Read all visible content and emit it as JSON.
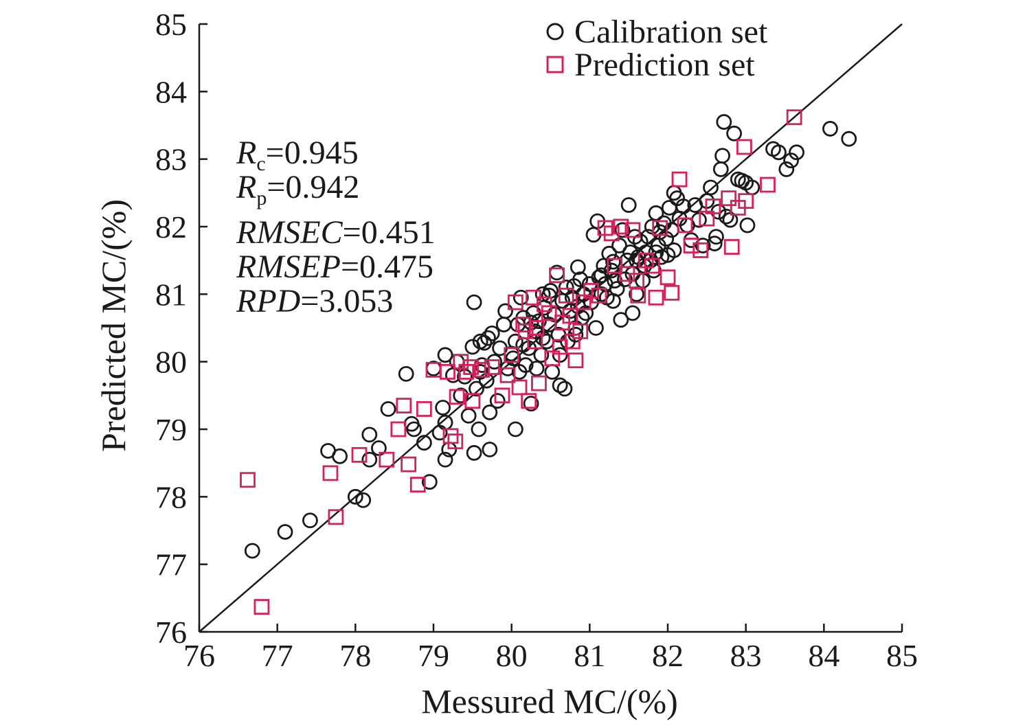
{
  "chart_data": {
    "type": "scatter",
    "xlabel": "Messured MC/(%)",
    "ylabel": "Predicted MC/(%)",
    "xlim": [
      76,
      85
    ],
    "ylim": [
      76,
      85
    ],
    "xticks": [
      "76",
      "77",
      "78",
      "79",
      "80",
      "81",
      "82",
      "83",
      "84",
      "85"
    ],
    "yticks": [
      "76",
      "77",
      "78",
      "79",
      "80",
      "81",
      "82",
      "83",
      "84",
      "85"
    ],
    "grid": false,
    "legend_position": "top-right",
    "reference_line": {
      "from": [
        76,
        76
      ],
      "to": [
        85,
        85
      ]
    },
    "stats": {
      "rc": {
        "sym": "R",
        "sub": "c",
        "val": "=0.945"
      },
      "rp": {
        "sym": "R",
        "sub": "p",
        "val": "=0.942"
      },
      "rmsec": {
        "sym": "RMSEC",
        "val": "=0.451"
      },
      "rmsep": {
        "sym": "RMSEP",
        "val": "=0.475"
      },
      "rpd": {
        "sym": "RPD",
        "val": "=3.053"
      }
    },
    "series": [
      {
        "name": "Calibration set",
        "marker": "circle",
        "color": "#1a1a1a",
        "points": [
          [
            76.68,
            77.2
          ],
          [
            77.1,
            77.48
          ],
          [
            77.42,
            77.65
          ],
          [
            78.0,
            78.0
          ],
          [
            78.1,
            77.95
          ],
          [
            77.65,
            78.68
          ],
          [
            77.8,
            78.6
          ],
          [
            78.18,
            78.55
          ],
          [
            78.18,
            78.92
          ],
          [
            78.3,
            78.72
          ],
          [
            78.42,
            79.3
          ],
          [
            78.65,
            79.82
          ],
          [
            78.72,
            79.08
          ],
          [
            78.75,
            79.0
          ],
          [
            78.88,
            78.8
          ],
          [
            78.95,
            78.22
          ],
          [
            79.0,
            79.9
          ],
          [
            79.08,
            78.95
          ],
          [
            79.12,
            79.32
          ],
          [
            79.15,
            79.1
          ],
          [
            79.15,
            78.55
          ],
          [
            79.15,
            80.1
          ],
          [
            79.2,
            78.7
          ],
          [
            79.25,
            79.8
          ],
          [
            79.3,
            80.0
          ],
          [
            79.4,
            79.78
          ],
          [
            79.45,
            79.2
          ],
          [
            79.5,
            80.22
          ],
          [
            79.52,
            80.88
          ],
          [
            79.52,
            78.65
          ],
          [
            79.55,
            79.6
          ],
          [
            79.58,
            79.0
          ],
          [
            79.6,
            80.3
          ],
          [
            79.62,
            79.95
          ],
          [
            79.65,
            80.28
          ],
          [
            79.7,
            80.35
          ],
          [
            79.72,
            79.25
          ],
          [
            79.75,
            80.42
          ],
          [
            79.72,
            78.7
          ],
          [
            79.78,
            80.0
          ],
          [
            79.82,
            79.42
          ],
          [
            79.85,
            80.2
          ],
          [
            79.9,
            80.55
          ],
          [
            79.92,
            80.75
          ],
          [
            79.95,
            79.9
          ],
          [
            80.0,
            80.12
          ],
          [
            80.02,
            80.05
          ],
          [
            80.05,
            80.3
          ],
          [
            80.08,
            80.55
          ],
          [
            80.05,
            79.0
          ],
          [
            80.1,
            79.85
          ],
          [
            80.12,
            80.95
          ],
          [
            80.15,
            80.65
          ],
          [
            80.18,
            79.95
          ],
          [
            80.22,
            80.2
          ],
          [
            80.25,
            79.38
          ],
          [
            80.28,
            80.72
          ],
          [
            80.3,
            80.45
          ],
          [
            80.32,
            79.9
          ],
          [
            80.35,
            80.6
          ],
          [
            80.38,
            80.1
          ],
          [
            80.4,
            81.0
          ],
          [
            80.42,
            80.8
          ],
          [
            80.45,
            80.3
          ],
          [
            80.48,
            80.55
          ],
          [
            80.5,
            81.05
          ],
          [
            80.52,
            79.85
          ],
          [
            80.55,
            80.7
          ],
          [
            80.58,
            81.32
          ],
          [
            80.6,
            80.4
          ],
          [
            80.62,
            79.65
          ],
          [
            80.65,
            80.9
          ],
          [
            80.68,
            79.6
          ],
          [
            80.7,
            81.1
          ],
          [
            80.72,
            80.3
          ],
          [
            80.75,
            80.75
          ],
          [
            80.78,
            80.95
          ],
          [
            80.8,
            81.12
          ],
          [
            80.82,
            80.5
          ],
          [
            80.85,
            80.82
          ],
          [
            80.88,
            81.22
          ],
          [
            80.9,
            80.65
          ],
          [
            80.92,
            81.0
          ],
          [
            80.95,
            80.72
          ],
          [
            81.0,
            81.15
          ],
          [
            81.02,
            80.88
          ],
          [
            81.05,
            81.88
          ],
          [
            81.08,
            80.5
          ],
          [
            81.1,
            82.08
          ],
          [
            81.12,
            81.25
          ],
          [
            81.15,
            81.0
          ],
          [
            81.18,
            81.42
          ],
          [
            81.2,
            81.15
          ],
          [
            81.22,
            80.95
          ],
          [
            81.25,
            81.6
          ],
          [
            81.28,
            81.35
          ],
          [
            81.3,
            81.48
          ],
          [
            81.32,
            81.2
          ],
          [
            81.35,
            81.08
          ],
          [
            81.38,
            81.72
          ],
          [
            81.4,
            80.62
          ],
          [
            81.42,
            81.95
          ],
          [
            81.45,
            81.22
          ],
          [
            81.48,
            81.5
          ],
          [
            81.5,
            82.32
          ],
          [
            81.52,
            81.62
          ],
          [
            81.55,
            81.3
          ],
          [
            81.58,
            81.85
          ],
          [
            81.6,
            81.0
          ],
          [
            81.62,
            81.55
          ],
          [
            81.65,
            81.78
          ],
          [
            81.68,
            81.2
          ],
          [
            81.7,
            81.42
          ],
          [
            81.72,
            81.62
          ],
          [
            81.75,
            81.85
          ],
          [
            81.78,
            81.5
          ],
          [
            81.8,
            82.0
          ],
          [
            81.82,
            81.35
          ],
          [
            81.85,
            82.2
          ],
          [
            81.88,
            81.72
          ],
          [
            81.9,
            81.92
          ],
          [
            81.92,
            81.55
          ],
          [
            81.95,
            82.05
          ],
          [
            81.98,
            81.82
          ],
          [
            82.0,
            81.58
          ],
          [
            82.02,
            82.28
          ],
          [
            82.05,
            81.95
          ],
          [
            82.08,
            82.5
          ],
          [
            82.12,
            82.42
          ],
          [
            82.15,
            82.12
          ],
          [
            82.2,
            82.3
          ],
          [
            82.25,
            82.02
          ],
          [
            82.3,
            81.8
          ],
          [
            82.35,
            82.32
          ],
          [
            82.4,
            82.1
          ],
          [
            82.45,
            81.72
          ],
          [
            82.5,
            82.38
          ],
          [
            82.55,
            82.58
          ],
          [
            82.6,
            81.75
          ],
          [
            82.62,
            81.85
          ],
          [
            82.65,
            82.22
          ],
          [
            82.68,
            82.85
          ],
          [
            82.7,
            83.05
          ],
          [
            82.72,
            83.55
          ],
          [
            82.75,
            82.15
          ],
          [
            82.8,
            82.1
          ],
          [
            82.85,
            83.38
          ],
          [
            82.9,
            82.7
          ],
          [
            82.95,
            82.68
          ],
          [
            83.0,
            82.65
          ],
          [
            83.02,
            82.02
          ],
          [
            83.08,
            82.58
          ],
          [
            83.35,
            83.15
          ],
          [
            83.42,
            83.1
          ],
          [
            83.52,
            82.85
          ],
          [
            83.58,
            82.98
          ],
          [
            83.65,
            83.1
          ],
          [
            84.08,
            83.45
          ],
          [
            84.32,
            83.3
          ],
          [
            79.35,
            79.5
          ],
          [
            79.68,
            79.72
          ],
          [
            80.15,
            80.25
          ],
          [
            80.48,
            80.98
          ],
          [
            80.82,
            80.4
          ],
          [
            81.15,
            81.28
          ],
          [
            81.55,
            80.72
          ],
          [
            81.3,
            80.9
          ],
          [
            80.25,
            80.58
          ],
          [
            80.4,
            80.35
          ],
          [
            79.6,
            79.85
          ],
          [
            81.85,
            81.62
          ],
          [
            82.08,
            81.65
          ],
          [
            80.85,
            81.4
          ],
          [
            81.6,
            81.5
          ],
          [
            80.62,
            80.1
          ]
        ]
      },
      {
        "name": "Prediction set",
        "marker": "square",
        "color": "#d6205a",
        "points": [
          [
            76.62,
            78.25
          ],
          [
            76.8,
            76.37
          ],
          [
            77.68,
            78.35
          ],
          [
            77.75,
            77.7
          ],
          [
            78.05,
            78.62
          ],
          [
            78.4,
            78.55
          ],
          [
            78.55,
            79.0
          ],
          [
            78.62,
            79.35
          ],
          [
            78.68,
            78.48
          ],
          [
            78.8,
            78.18
          ],
          [
            78.88,
            79.3
          ],
          [
            79.0,
            79.88
          ],
          [
            79.22,
            78.9
          ],
          [
            79.28,
            78.82
          ],
          [
            79.3,
            79.48
          ],
          [
            79.35,
            80.0
          ],
          [
            79.42,
            79.85
          ],
          [
            79.5,
            79.42
          ],
          [
            79.62,
            79.88
          ],
          [
            79.75,
            79.92
          ],
          [
            79.88,
            79.5
          ],
          [
            80.0,
            80.1
          ],
          [
            80.05,
            80.88
          ],
          [
            80.1,
            79.62
          ],
          [
            80.15,
            80.55
          ],
          [
            80.22,
            79.42
          ],
          [
            80.28,
            80.95
          ],
          [
            80.32,
            80.5
          ],
          [
            80.35,
            79.68
          ],
          [
            80.42,
            80.85
          ],
          [
            80.48,
            80.72
          ],
          [
            80.52,
            80.05
          ],
          [
            80.58,
            81.28
          ],
          [
            80.62,
            80.22
          ],
          [
            80.7,
            80.98
          ],
          [
            80.75,
            80.68
          ],
          [
            80.78,
            80.3
          ],
          [
            80.82,
            80.02
          ],
          [
            80.88,
            80.45
          ],
          [
            80.92,
            80.88
          ],
          [
            81.02,
            81.05
          ],
          [
            81.12,
            80.98
          ],
          [
            81.2,
            81.98
          ],
          [
            81.28,
            81.9
          ],
          [
            81.4,
            82.0
          ],
          [
            81.48,
            81.3
          ],
          [
            81.55,
            81.95
          ],
          [
            81.62,
            80.98
          ],
          [
            81.72,
            81.5
          ],
          [
            81.8,
            81.42
          ],
          [
            81.85,
            80.95
          ],
          [
            81.9,
            81.98
          ],
          [
            82.0,
            81.25
          ],
          [
            82.05,
            81.02
          ],
          [
            82.15,
            82.7
          ],
          [
            82.22,
            82.02
          ],
          [
            82.3,
            81.72
          ],
          [
            82.42,
            81.65
          ],
          [
            82.5,
            82.12
          ],
          [
            82.58,
            82.3
          ],
          [
            82.78,
            82.42
          ],
          [
            82.82,
            81.7
          ],
          [
            82.9,
            82.28
          ],
          [
            82.98,
            83.18
          ],
          [
            83.0,
            82.38
          ],
          [
            83.28,
            82.62
          ],
          [
            83.62,
            83.62
          ],
          [
            79.18,
            79.85
          ],
          [
            79.95,
            79.8
          ],
          [
            80.18,
            80.45
          ],
          [
            80.65,
            80.58
          ],
          [
            81.32,
            81.42
          ],
          [
            81.6,
            81.2
          ],
          [
            80.3,
            80.3
          ],
          [
            79.48,
            79.92
          ]
        ]
      }
    ]
  }
}
